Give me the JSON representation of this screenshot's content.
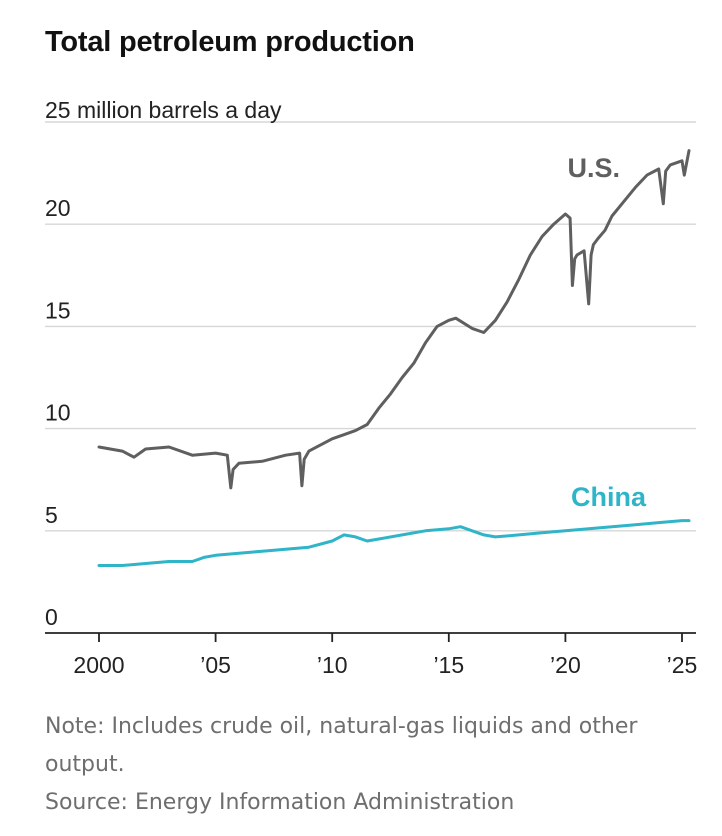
{
  "header": {
    "title": "Total petroleum production"
  },
  "footer": {
    "note": "Note: Includes crude oil, natural-gas liquids and other output.",
    "source": "Source: Energy Information Administration"
  },
  "chart_data": {
    "type": "line",
    "title": "Total petroleum production",
    "ylabel": "25 million barrels a day",
    "xlabel": "",
    "xlim": [
      2000,
      2025.5
    ],
    "ylim": [
      0,
      25
    ],
    "grid": true,
    "y_ticks": [
      {
        "value": 0,
        "label": "0"
      },
      {
        "value": 5,
        "label": "5"
      },
      {
        "value": 10,
        "label": "10"
      },
      {
        "value": 15,
        "label": "15"
      },
      {
        "value": 20,
        "label": "20"
      }
    ],
    "x_ticks": [
      {
        "value": 2000,
        "label": "2000"
      },
      {
        "value": 2005,
        "label": "’05"
      },
      {
        "value": 2010,
        "label": "’10"
      },
      {
        "value": 2015,
        "label": "’15"
      },
      {
        "value": 2020,
        "label": "’20"
      },
      {
        "value": 2025,
        "label": "’25"
      }
    ],
    "series": [
      {
        "name": "U.S.",
        "color": "#5f5f5f",
        "x": [
          2000,
          2001,
          2001.5,
          2002,
          2003,
          2004,
          2005,
          2005.5,
          2005.65,
          2005.75,
          2006,
          2007,
          2008,
          2008.6,
          2008.7,
          2008.8,
          2009,
          2010,
          2010.5,
          2011,
          2011.5,
          2012,
          2012.5,
          2013,
          2013.5,
          2014,
          2014.5,
          2015,
          2015.3,
          2016,
          2016.5,
          2017,
          2017.5,
          2018,
          2018.5,
          2019,
          2019.5,
          2020,
          2020.2,
          2020.3,
          2020.4,
          2020.5,
          2020.8,
          2021,
          2021.1,
          2021.2,
          2021.4,
          2021.7,
          2022,
          2022.5,
          2023,
          2023.5,
          2024,
          2024.2,
          2024.3,
          2024.5,
          2025,
          2025.1,
          2025.3
        ],
        "y": [
          9.1,
          8.9,
          8.6,
          9.0,
          9.1,
          8.7,
          8.8,
          8.7,
          7.1,
          8.0,
          8.3,
          8.4,
          8.7,
          8.8,
          7.2,
          8.5,
          8.9,
          9.5,
          9.7,
          9.9,
          10.2,
          11.0,
          11.7,
          12.5,
          13.2,
          14.2,
          15.0,
          15.3,
          15.4,
          14.9,
          14.7,
          15.3,
          16.2,
          17.3,
          18.5,
          19.4,
          20.0,
          20.5,
          20.3,
          17.0,
          18.3,
          18.5,
          18.7,
          16.1,
          18.5,
          19.0,
          19.3,
          19.7,
          20.4,
          21.1,
          21.8,
          22.4,
          22.7,
          21.0,
          22.6,
          22.9,
          23.1,
          22.4,
          23.6
        ]
      },
      {
        "name": "China",
        "color": "#2fb4c8",
        "x": [
          2000,
          2001,
          2002,
          2003,
          2004,
          2004.5,
          2005,
          2006,
          2007,
          2008,
          2009,
          2010,
          2010.5,
          2011,
          2011.5,
          2012,
          2013,
          2014,
          2015,
          2015.5,
          2016,
          2016.5,
          2017,
          2018,
          2019,
          2020,
          2021,
          2022,
          2023,
          2024,
          2025,
          2025.3
        ],
        "y": [
          3.3,
          3.3,
          3.4,
          3.5,
          3.5,
          3.7,
          3.8,
          3.9,
          4.0,
          4.1,
          4.2,
          4.5,
          4.8,
          4.7,
          4.5,
          4.6,
          4.8,
          5.0,
          5.1,
          5.2,
          5.0,
          4.8,
          4.7,
          4.8,
          4.9,
          5.0,
          5.1,
          5.2,
          5.3,
          5.4,
          5.5,
          5.5
        ]
      }
    ]
  }
}
